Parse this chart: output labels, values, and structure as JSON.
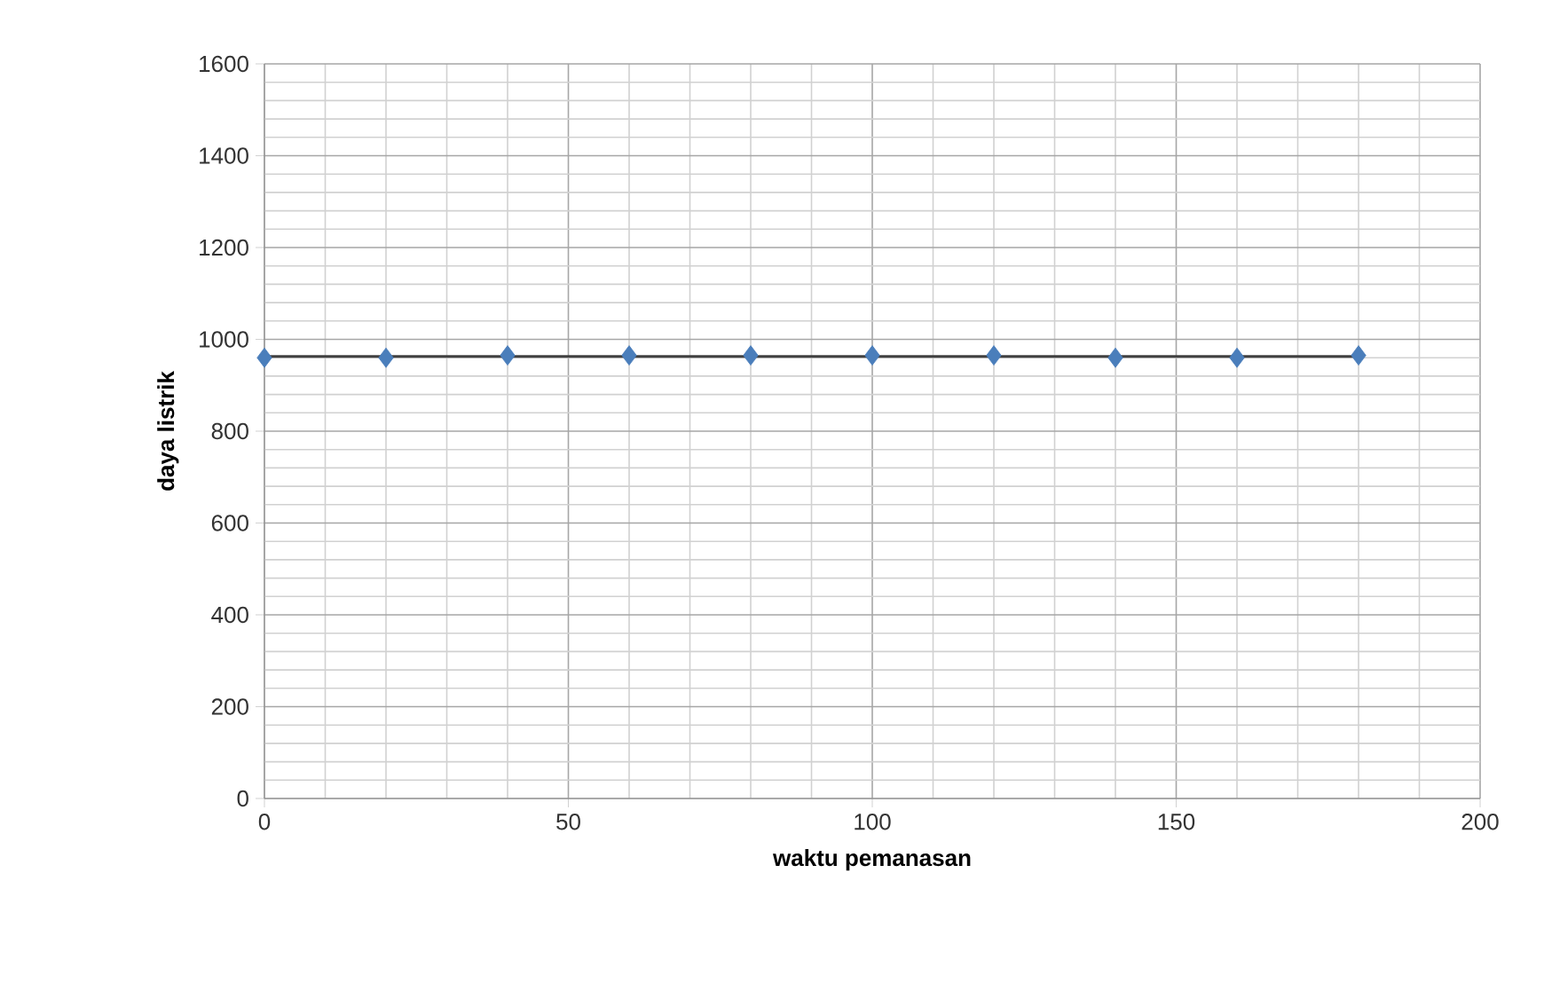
{
  "chart_data": {
    "type": "scatter",
    "xlabel": "waktu pemanasan",
    "ylabel": "daya listrik",
    "series": [
      {
        "color": "#4a7ebb",
        "marker": "diamond",
        "x": [
          0,
          20,
          40,
          60,
          80,
          100,
          120,
          140,
          160,
          180
        ],
        "values": [
          960,
          960,
          965,
          965,
          965,
          965,
          965,
          960,
          960,
          965
        ]
      },
      {
        "type": "line",
        "color": "#404040",
        "marker": "none",
        "x": [
          0,
          180
        ],
        "values": [
          963,
          963
        ]
      }
    ],
    "xlim": [
      0,
      200
    ],
    "ylim": [
      0,
      1600
    ],
    "xticks": [
      0,
      50,
      100,
      150,
      200
    ],
    "yticks": [
      0,
      200,
      400,
      600,
      800,
      1000,
      1200,
      1400,
      1600
    ],
    "grid": true
  }
}
